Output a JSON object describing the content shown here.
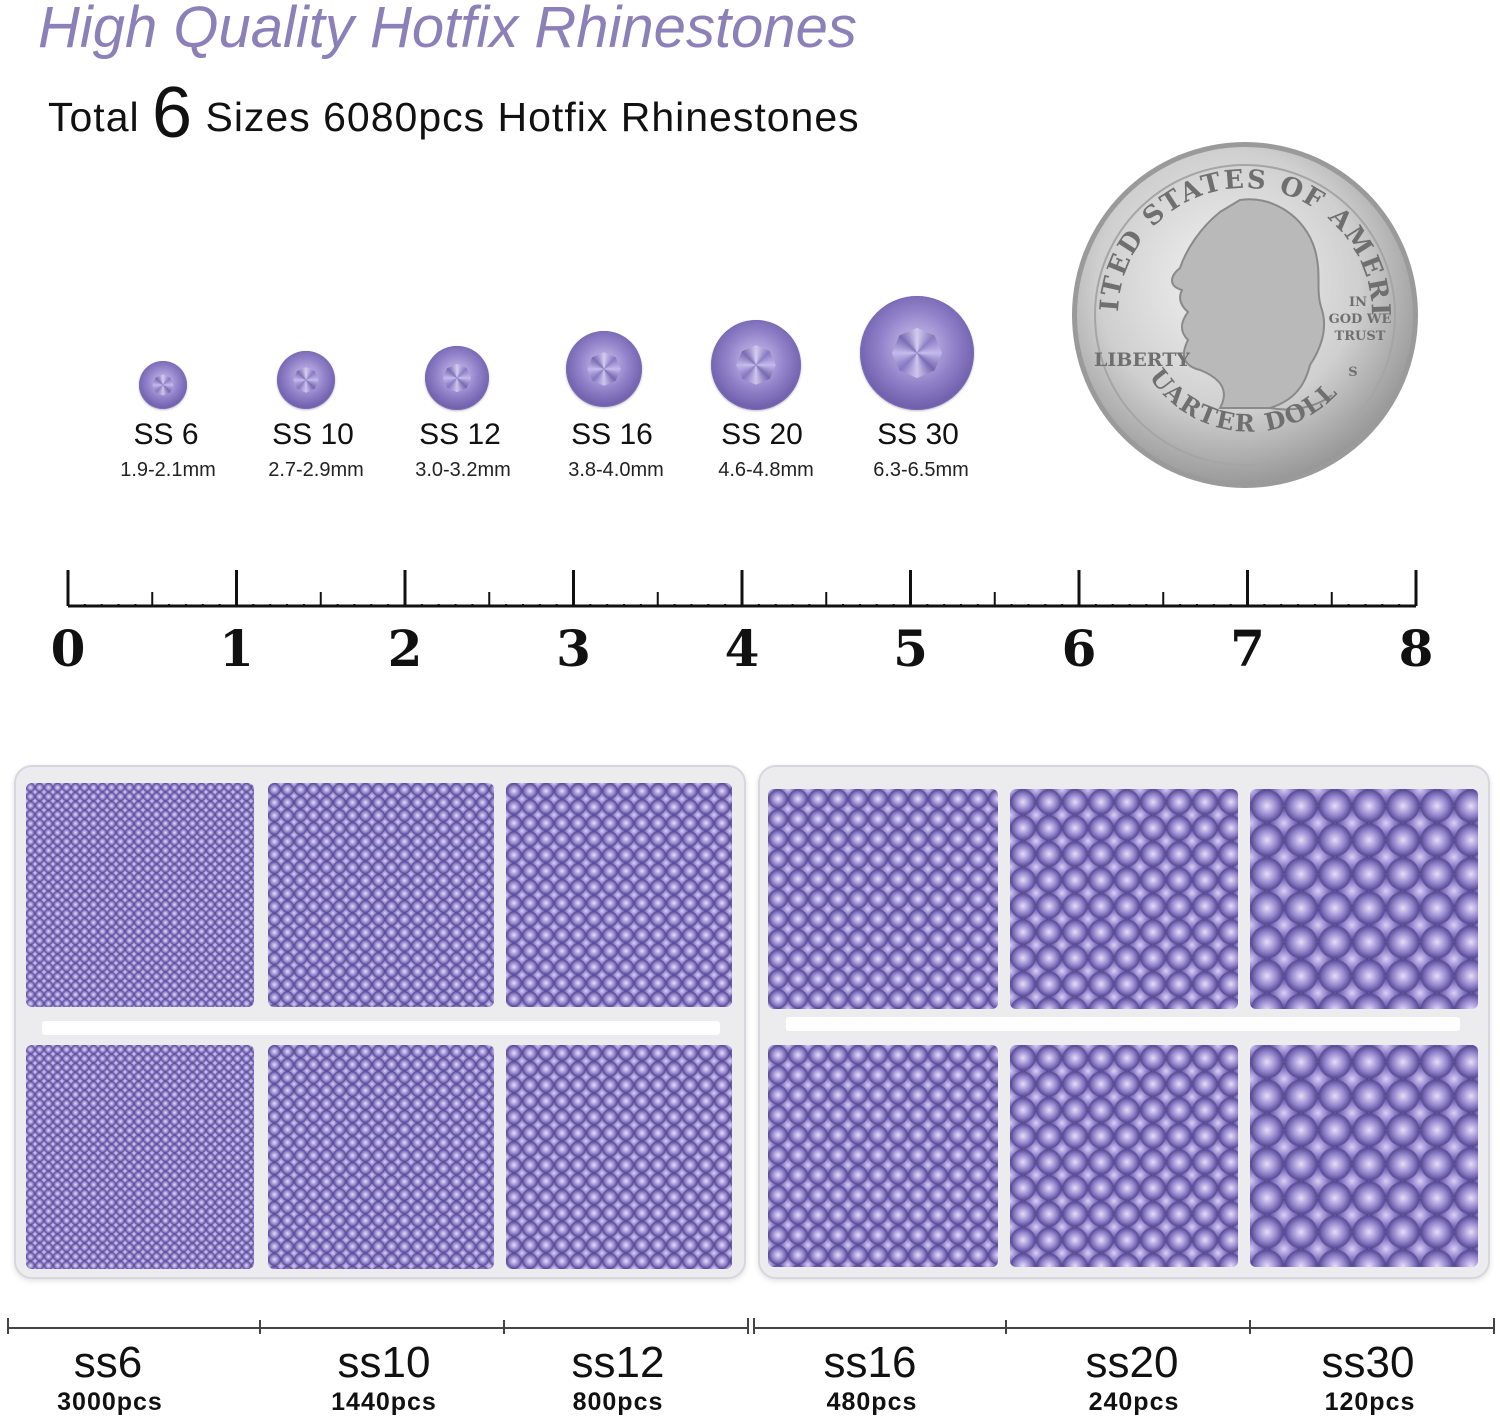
{
  "headline": "High Quality Hotfix Rhinestones",
  "subline": {
    "prefix": "Total",
    "number": "6",
    "suffix": "Sizes 6080pcs Hotfix Rhinestones"
  },
  "sizes": [
    {
      "label": "SS 6",
      "mm": "1.9-2.1mm"
    },
    {
      "label": "SS 10",
      "mm": "2.7-2.9mm"
    },
    {
      "label": "SS 12",
      "mm": "3.0-3.2mm"
    },
    {
      "label": "SS 16",
      "mm": "3.8-4.0mm"
    },
    {
      "label": "SS 20",
      "mm": "4.6-4.8mm"
    },
    {
      "label": "SS 30",
      "mm": "6.3-6.5mm"
    }
  ],
  "coin": {
    "top_text": "UNITED STATES OF AMERICA",
    "motto": [
      "IN",
      "GOD WE",
      "TRUST"
    ],
    "left_text": "LIBERTY",
    "mint": "S",
    "bottom_text": "QUARTER DOLLAR"
  },
  "ruler": {
    "numbers": [
      "0",
      "1",
      "2",
      "3",
      "4",
      "5",
      "6",
      "7",
      "8"
    ]
  },
  "compartments": [
    {
      "name": "ss6",
      "pcs": "3000pcs"
    },
    {
      "name": "ss10",
      "pcs": "1440pcs"
    },
    {
      "name": "ss12",
      "pcs": "800pcs"
    },
    {
      "name": "ss16",
      "pcs": "480pcs"
    },
    {
      "name": "ss20",
      "pcs": "240pcs"
    },
    {
      "name": "ss30",
      "pcs": "120pcs"
    }
  ],
  "colors": {
    "headline": "#8b80b8",
    "stone": "#8a7cc4",
    "tray": "#ececef"
  },
  "icons": [
    "quarter-coin-icon",
    "rhinestone-icon",
    "ruler-icon"
  ]
}
